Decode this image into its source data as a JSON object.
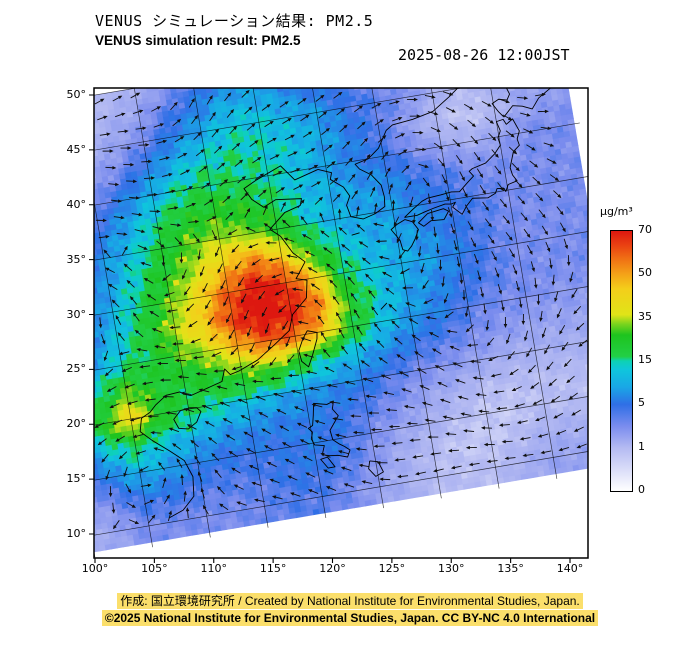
{
  "header": {
    "title_jp": "VENUS シミュレーション結果: PM2.5",
    "title_en": "VENUS simulation result: PM2.5",
    "timestamp": "2025-08-26 12:00JST"
  },
  "footer": {
    "credit": "作成: 国立環境研究所 / Created by National Institute for Environmental Studies, Japan.",
    "license": "©2025 National Institute for Environmental Studies, Japan. CC BY-NC 4.0 International",
    "highlight_color": "#fbdf6b"
  },
  "chart_data": {
    "type": "heatmap",
    "title": "VENUS simulation result: PM2.5",
    "variable": "PM2.5",
    "unit": "μg/m³",
    "timestamp": "2025-08-26 12:00JST",
    "projection": "rotated lat-lon over East Asia",
    "lat_ticks": [
      "50°",
      "45°",
      "40°",
      "35°",
      "30°",
      "25°",
      "20°",
      "15°",
      "10°"
    ],
    "lon_ticks": [
      "100°",
      "105°",
      "110°",
      "115°",
      "120°",
      "125°",
      "130°",
      "135°",
      "140°"
    ],
    "lon_range": [
      100,
      145
    ],
    "lat_range": [
      10,
      50
    ],
    "overlays": [
      "wind-vectors",
      "coastlines",
      "graticule"
    ],
    "grid": {
      "lon_start": 100,
      "lon_step": 2.5,
      "lat_start": 50,
      "lat_step": -2.5,
      "units": "μg/m³",
      "values": [
        [
          0.5,
          0.5,
          0.8,
          1,
          1.5,
          2,
          4,
          6,
          6,
          5,
          4,
          3,
          2,
          1.5,
          1,
          0.8,
          1,
          1.2,
          1.2
        ],
        [
          0.5,
          0.8,
          1,
          1.5,
          2,
          4,
          6,
          9,
          9,
          7,
          5,
          4,
          3,
          2,
          1,
          0.8,
          1,
          1.5,
          1.5
        ],
        [
          0.8,
          1,
          1.5,
          2,
          3,
          6,
          9,
          13,
          13,
          10,
          8,
          5,
          4,
          3,
          1.5,
          1,
          1.5,
          2,
          2
        ],
        [
          1,
          1.5,
          2,
          3,
          6,
          10,
          14,
          16,
          14,
          12,
          9,
          6,
          4,
          2,
          1,
          0.8,
          1,
          2,
          2.5
        ],
        [
          1.5,
          2,
          3,
          6,
          10,
          16,
          18,
          17,
          15,
          12,
          8,
          6,
          5,
          3,
          2,
          1.5,
          2,
          3,
          3
        ],
        [
          2,
          3,
          5,
          9,
          16,
          22,
          26,
          24,
          18,
          12,
          10,
          8,
          7,
          5,
          4,
          3,
          3,
          3,
          3
        ],
        [
          2,
          4,
          7,
          12,
          20,
          30,
          35,
          32,
          26,
          14,
          10,
          9,
          8,
          6,
          5,
          4,
          3,
          3,
          3
        ],
        [
          2,
          4,
          8,
          15,
          25,
          35,
          45,
          55,
          45,
          25,
          14,
          10,
          9,
          7,
          5,
          4,
          3,
          3,
          3
        ],
        [
          2,
          5,
          10,
          18,
          30,
          42,
          60,
          72,
          65,
          45,
          18,
          12,
          10,
          8,
          6,
          4,
          3,
          3,
          3
        ],
        [
          3,
          6,
          12,
          20,
          35,
          45,
          65,
          75,
          70,
          55,
          25,
          13,
          9,
          7,
          5,
          4,
          3,
          3,
          3
        ],
        [
          4,
          8,
          15,
          20,
          28,
          35,
          48,
          60,
          58,
          45,
          22,
          12,
          8,
          6,
          4,
          3,
          3,
          2.5,
          2.5
        ],
        [
          6,
          15,
          30,
          22,
          20,
          25,
          28,
          30,
          20,
          14,
          10,
          7,
          5,
          4,
          3,
          2.5,
          2,
          2,
          2
        ],
        [
          8,
          25,
          45,
          25,
          18,
          15,
          12,
          10,
          8,
          7,
          6,
          4,
          3,
          2.5,
          2,
          1.5,
          1.5,
          1.5,
          1.5
        ],
        [
          5,
          12,
          18,
          12,
          10,
          8,
          7,
          6,
          6,
          5,
          4,
          3,
          2,
          1.5,
          1,
          1,
          1,
          1,
          1
        ],
        [
          3,
          6,
          10,
          8,
          6,
          5,
          5,
          5,
          6,
          5,
          3,
          2,
          1.5,
          1,
          0.8,
          0.8,
          1,
          1,
          1
        ],
        [
          2,
          3,
          5,
          5,
          4,
          4,
          4,
          5,
          5,
          4,
          2.5,
          1.5,
          1,
          0.8,
          0.8,
          1,
          1.5,
          1.5,
          1.5
        ],
        [
          1.5,
          2,
          3,
          3,
          3,
          3,
          3.5,
          4,
          4,
          3,
          2,
          1.5,
          1,
          1,
          1,
          1.5,
          2,
          2,
          2
        ]
      ]
    },
    "colorbar": {
      "label": "μg/m³",
      "levels": [
        0,
        1,
        5,
        15,
        35,
        50,
        70
      ],
      "stops": [
        {
          "value": 0,
          "color": "#ffffff"
        },
        {
          "value": 1,
          "color": "#b4baf2"
        },
        {
          "value": 3,
          "color": "#7a8cee"
        },
        {
          "value": 5,
          "color": "#2f6fe6"
        },
        {
          "value": 9,
          "color": "#19a7e6"
        },
        {
          "value": 13,
          "color": "#0fc6dc"
        },
        {
          "value": 15,
          "color": "#0dd2b4"
        },
        {
          "value": 17,
          "color": "#22cf46"
        },
        {
          "value": 27,
          "color": "#1ec41e"
        },
        {
          "value": 32,
          "color": "#7ad41e"
        },
        {
          "value": 36,
          "color": "#e0e418"
        },
        {
          "value": 45,
          "color": "#f4ce1a"
        },
        {
          "value": 50,
          "color": "#f4a318"
        },
        {
          "value": 57,
          "color": "#f07114"
        },
        {
          "value": 63,
          "color": "#ea4412"
        },
        {
          "value": 70,
          "color": "#dd1810"
        }
      ]
    }
  }
}
